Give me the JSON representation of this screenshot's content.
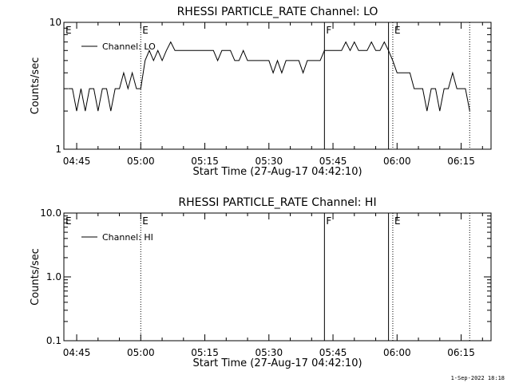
{
  "footer": {
    "timestamp": "1-Sep-2022 18:18"
  },
  "chart_data": [
    {
      "type": "line",
      "title": "RHESSI PARTICLE_RATE Channel: LO",
      "xlabel": "Start Time (27-Aug-17 04:42:10)",
      "ylabel": "Counts/sec",
      "y_scale": "log",
      "ylim": [
        1,
        10
      ],
      "y_tick_labels": [
        "1",
        "10"
      ],
      "xlim": [
        "04:42",
        "06:22"
      ],
      "x_tick_labels": [
        "04:45",
        "05:00",
        "05:15",
        "05:30",
        "05:45",
        "06:00",
        "06:15"
      ],
      "legend": {
        "position": "top-left",
        "entries": [
          "Channel: LO"
        ]
      },
      "grid": false,
      "markers": [
        {
          "time": "05:00",
          "label": "E",
          "style": "dotted"
        },
        {
          "time": "05:43",
          "label": "F",
          "style": "solid"
        },
        {
          "time": "05:58",
          "label": "",
          "style": "solid"
        },
        {
          "time": "05:59",
          "label": "E",
          "style": "dotted"
        },
        {
          "time": "06:17",
          "label": "",
          "style": "dotted"
        }
      ],
      "series": [
        {
          "name": "Channel: LO",
          "x": [
            "04:43",
            "04:44",
            "04:45",
            "04:46",
            "04:47",
            "04:48",
            "04:49",
            "04:50",
            "04:51",
            "04:52",
            "04:53",
            "04:54",
            "04:55",
            "04:56",
            "04:57",
            "04:58",
            "04:59",
            "05:00",
            "05:01",
            "05:02",
            "05:03",
            "05:04",
            "05:05",
            "05:06",
            "05:07",
            "05:08",
            "05:09",
            "05:10",
            "05:11",
            "05:12",
            "05:13",
            "05:14",
            "05:15",
            "05:16",
            "05:17",
            "05:18",
            "05:19",
            "05:20",
            "05:21",
            "05:22",
            "05:23",
            "05:24",
            "05:25",
            "05:26",
            "05:27",
            "05:28",
            "05:29",
            "05:30",
            "05:31",
            "05:32",
            "05:33",
            "05:34",
            "05:35",
            "05:36",
            "05:37",
            "05:38",
            "05:39",
            "05:40",
            "05:41",
            "05:42",
            "05:43",
            "05:44",
            "05:45",
            "05:46",
            "05:47",
            "05:48",
            "05:49",
            "05:50",
            "05:51",
            "05:52",
            "05:53",
            "05:54",
            "05:55",
            "05:56",
            "05:57",
            "05:58",
            "05:59",
            "06:00",
            "06:01",
            "06:02",
            "06:03",
            "06:04",
            "06:05",
            "06:06",
            "06:07",
            "06:08",
            "06:09",
            "06:10",
            "06:11",
            "06:12",
            "06:13",
            "06:14",
            "06:15",
            "06:16",
            "06:17"
          ],
          "y": [
            3,
            3,
            2,
            3,
            2,
            3,
            3,
            2,
            3,
            3,
            2,
            3,
            3,
            4,
            3,
            4,
            3,
            3,
            5,
            6,
            5,
            6,
            5,
            6,
            7,
            6,
            6,
            6,
            6,
            6,
            6,
            6,
            6,
            6,
            6,
            5,
            6,
            6,
            6,
            5,
            5,
            6,
            5,
            5,
            5,
            5,
            5,
            5,
            4,
            5,
            4,
            5,
            5,
            5,
            5,
            4,
            5,
            5,
            5,
            5,
            6,
            6,
            6,
            6,
            6,
            7,
            6,
            7,
            6,
            6,
            6,
            7,
            6,
            6,
            7,
            6,
            5,
            4,
            4,
            4,
            4,
            3,
            3,
            3,
            2,
            3,
            3,
            2,
            3,
            3,
            4,
            3,
            3,
            3,
            2
          ]
        }
      ]
    },
    {
      "type": "line",
      "title": "RHESSI PARTICLE_RATE Channel: HI",
      "xlabel": "Start Time (27-Aug-17 04:42:10)",
      "ylabel": "Counts/sec",
      "y_scale": "log",
      "ylim": [
        0.1,
        10
      ],
      "y_tick_labels": [
        "0.1",
        "1.0",
        "10.0"
      ],
      "xlim": [
        "04:42",
        "06:22"
      ],
      "x_tick_labels": [
        "04:45",
        "05:00",
        "05:15",
        "05:30",
        "05:45",
        "06:00",
        "06:15"
      ],
      "legend": {
        "position": "top-left",
        "entries": [
          "Channel: HI"
        ]
      },
      "grid": false,
      "markers": [
        {
          "time": "05:00",
          "label": "E",
          "style": "dotted"
        },
        {
          "time": "05:43",
          "label": "F",
          "style": "solid"
        },
        {
          "time": "05:58",
          "label": "",
          "style": "solid"
        },
        {
          "time": "05:59",
          "label": "E",
          "style": "dotted"
        },
        {
          "time": "06:17",
          "label": "",
          "style": "dotted"
        }
      ],
      "series": [
        {
          "name": "Channel: HI",
          "x": [],
          "y": []
        }
      ]
    }
  ]
}
